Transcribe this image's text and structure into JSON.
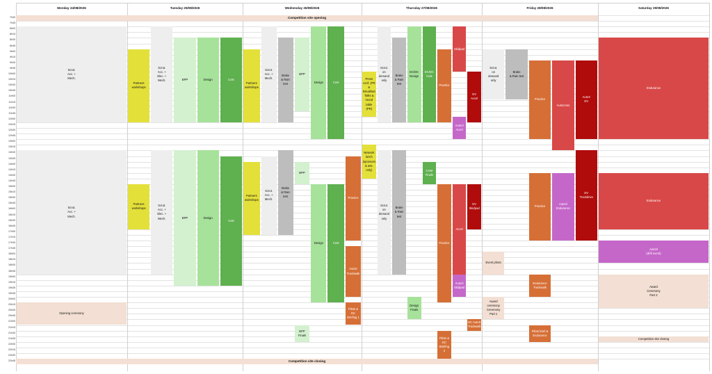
{
  "days": [
    {
      "label": "Monday 24/08/2026"
    },
    {
      "label": "Tuesday 25/08/2026"
    },
    {
      "label": "Wednesday 26/08/2026"
    },
    {
      "label": "Thursday 27/08/2026"
    },
    {
      "label": "Friday 28/08/2026"
    },
    {
      "label": "Saturday 29/08/2026"
    }
  ],
  "times": [
    "7h30",
    "7h45",
    "8h00",
    "8h15",
    "8h30",
    "8h45",
    "9h00",
    "9h15",
    "9h30",
    "9h45",
    "10h00",
    "10h15",
    "10h30",
    "10h45",
    "11h00",
    "11h15",
    "11h30",
    "11h45",
    "12h00",
    "12h15",
    "12h30",
    "12h45",
    "13h00",
    "13h15",
    "13h30",
    "13h45",
    "14h00",
    "14h15",
    "14h30",
    "14h45",
    "15h00",
    "15h15",
    "15h30",
    "15h45",
    "16h00",
    "16h15",
    "16h30",
    "16h45",
    "17h00",
    "17h15",
    "17h30",
    "17h45",
    "18h00",
    "18h15",
    "18h30",
    "18h45",
    "19h00",
    "19h15",
    "19h30",
    "19h45",
    "20h00",
    "20h15",
    "20h30",
    "20h45",
    "21h00",
    "21h15",
    "21h30",
    "21h45",
    "22h00",
    "22h15",
    "22h30",
    "22h45"
  ],
  "colors": {
    "grey": "#eeeeee",
    "midgrey": "#bdbdbd",
    "yellow": "#e4e03a",
    "lightgreen": "#d3f0cf",
    "green": "#a6e29a",
    "darkgreen": "#5fb04f",
    "orange": "#d66f36",
    "red": "#d94848",
    "darkred": "#b00c0c",
    "violet": "#c567c9",
    "peach": "#f3dfd3"
  },
  "banners": [
    {
      "text": "Competition site opening",
      "top": "7h30",
      "bottom": "7h45",
      "kind": "peach"
    },
    {
      "text": "Competition site closing",
      "top": "22h45",
      "bottom": "23h00",
      "kind": "peach"
    }
  ],
  "events": [
    {
      "name": "mon-scrut",
      "day": 0,
      "lane": [
        0,
        1
      ],
      "start": "8h00",
      "end": "12h15",
      "text": "Scrut.\nAcc. +\nMech.",
      "color": "grey"
    },
    {
      "name": "mon-scrut-2",
      "day": 0,
      "lane": [
        0,
        1
      ],
      "start": "13h30",
      "end": "19h00",
      "text": "Scrut.\nAcc. +\nMech.",
      "color": "grey"
    },
    {
      "name": "mon-opening",
      "day": 0,
      "lane": [
        0,
        1
      ],
      "start": "20h15",
      "end": "21h15",
      "text": "Opening ceremony",
      "color": "peach"
    },
    {
      "name": "tue-partners-1",
      "day": 1,
      "lane": [
        0,
        0.2
      ],
      "start": "9h00",
      "end": "12h15",
      "text": "Partners\nworkshops",
      "color": "yellow"
    },
    {
      "name": "tue-scrut-1",
      "day": 1,
      "lane": [
        0.2,
        0.4
      ],
      "start": "8h00",
      "end": "12h15",
      "text": "Scrut.\nAcc. +\nElec. +\nMech.",
      "color": "grey"
    },
    {
      "name": "tue-bpp-1",
      "day": 1,
      "lane": [
        0.4,
        0.6
      ],
      "start": "8h30",
      "end": "12h15",
      "text": "BPP",
      "color": "lightgreen"
    },
    {
      "name": "tue-design-1",
      "day": 1,
      "lane": [
        0.6,
        0.8
      ],
      "start": "8h30",
      "end": "12h15",
      "text": "Design",
      "color": "green"
    },
    {
      "name": "tue-cost-1",
      "day": 1,
      "lane": [
        0.8,
        1
      ],
      "start": "8h30",
      "end": "12h15",
      "text": "Cost",
      "color": "darkgreen"
    },
    {
      "name": "tue-partners-2",
      "day": 1,
      "lane": [
        0,
        0.2
      ],
      "start": "15h00",
      "end": "17h00",
      "text": "Partners\nworkshops",
      "color": "yellow"
    },
    {
      "name": "tue-scrut-2",
      "day": 1,
      "lane": [
        0.2,
        0.4
      ],
      "start": "13h30",
      "end": "19h00",
      "text": "Scrut.\nAcc. +\nElec. +\nMech.",
      "color": "grey"
    },
    {
      "name": "tue-bpp-2",
      "day": 1,
      "lane": [
        0.4,
        0.6
      ],
      "start": "13h30",
      "end": "19h30",
      "text": "BPP",
      "color": "lightgreen"
    },
    {
      "name": "tue-design-2",
      "day": 1,
      "lane": [
        0.6,
        0.8
      ],
      "start": "13h30",
      "end": "19h30",
      "text": "Design",
      "color": "green"
    },
    {
      "name": "tue-cost-2",
      "day": 1,
      "lane": [
        0.8,
        1
      ],
      "start": "13h45",
      "end": "19h30",
      "text": "Cost",
      "color": "darkgreen"
    },
    {
      "name": "wed-partners-1",
      "day": 2,
      "lane": [
        0,
        0.15
      ],
      "start": "9h00",
      "end": "12h15",
      "text": "Partners\nworkshops",
      "color": "yellow"
    },
    {
      "name": "wed-scrut-1",
      "day": 2,
      "lane": [
        0.15,
        0.29
      ],
      "start": "8h00",
      "end": "12h15",
      "text": "Scrut.\nAcc. +\nMech.",
      "color": "grey"
    },
    {
      "name": "wed-brake-1",
      "day": 2,
      "lane": [
        0.29,
        0.43
      ],
      "start": "8h30",
      "end": "12h15",
      "text": "Brake\n& Rain test",
      "color": "midgrey"
    },
    {
      "name": "wed-bpp-1",
      "day": 2,
      "lane": [
        0.43,
        0.57
      ],
      "start": "8h30",
      "end": "11h45",
      "text": "BPP",
      "color": "lightgreen"
    },
    {
      "name": "wed-design-1",
      "day": 2,
      "lane": [
        0.57,
        0.71
      ],
      "start": "8h00",
      "end": "13h00",
      "text": "Design",
      "color": "green"
    },
    {
      "name": "wed-cost-1",
      "day": 2,
      "lane": [
        0.71,
        0.86
      ],
      "start": "8h00",
      "end": "13h00",
      "text": "Cost",
      "color": "darkgreen"
    },
    {
      "name": "wed-partners-2",
      "day": 2,
      "lane": [
        0,
        0.15
      ],
      "start": "14h00",
      "end": "17h15",
      "text": "Partners\nworkshops",
      "color": "yellow"
    },
    {
      "name": "wed-scrut-2",
      "day": 2,
      "lane": [
        0.15,
        0.29
      ],
      "start": "13h45",
      "end": "17h15",
      "text": "Scrut.\nAcc. +\nMech.",
      "color": "grey"
    },
    {
      "name": "wed-brake-2",
      "day": 2,
      "lane": [
        0.29,
        0.43
      ],
      "start": "13h30",
      "end": "17h15",
      "text": "Brake\n& Rain test",
      "color": "midgrey"
    },
    {
      "name": "wed-bpp-2",
      "day": 2,
      "lane": [
        0.43,
        0.57
      ],
      "start": "14h00",
      "end": "15h00",
      "text": "BPP",
      "color": "lightgreen"
    },
    {
      "name": "wed-design-2",
      "day": 2,
      "lane": [
        0.57,
        0.71
      ],
      "start": "15h00",
      "end": "20h15",
      "text": "Design",
      "color": "green"
    },
    {
      "name": "wed-cost-2",
      "day": 2,
      "lane": [
        0.71,
        0.86
      ],
      "start": "15h00",
      "end": "20h15",
      "text": "Cost",
      "color": "darkgreen"
    },
    {
      "name": "wed-practice",
      "day": 2,
      "lane": [
        0.86,
        1
      ],
      "start": "13h45",
      "end": "17h30",
      "text": "Practice",
      "color": "orange"
    },
    {
      "name": "wed-autox",
      "day": 2,
      "lane": [
        0.86,
        1
      ],
      "start": "17h45",
      "end": "20h00",
      "text": "AutoX\nTrackwalk",
      "color": "orange"
    },
    {
      "name": "wed-pilots",
      "day": 2,
      "lane": [
        0.86,
        1
      ],
      "start": "20h15",
      "end": "21h15",
      "text": "Pilots & DC\nBriefing 1",
      "color": "orange"
    },
    {
      "name": "wed-bpp-finals",
      "day": 2,
      "lane": [
        0.43,
        0.57
      ],
      "start": "21h15",
      "end": "22h00",
      "text": "BPP\nFinals",
      "color": "lightgreen"
    },
    {
      "name": "thu-press",
      "day": 3,
      "lane": [
        0,
        0.125
      ],
      "start": "10h00",
      "end": "12h00",
      "text": "Press\nconf. (PR\n&\nBreakfast\nTalks &\nround\ntable (PR)",
      "color": "yellow"
    },
    {
      "name": "thu-network",
      "day": 3,
      "lane": [
        0,
        0.125
      ],
      "start": "13h15",
      "end": "14h45",
      "text": "Network\nlunch\n(sponsors\n& ass.\nonly)",
      "color": "yellow"
    },
    {
      "name": "thu-scrut-1",
      "day": 3,
      "lane": [
        0.125,
        0.25
      ],
      "start": "8h00",
      "end": "12h15",
      "text": "Scrut.\non\ndemand\nonly",
      "color": "grey"
    },
    {
      "name": "thu-brake-1",
      "day": 3,
      "lane": [
        0.25,
        0.375
      ],
      "start": "8h30",
      "end": "12h15",
      "text": "Brake\n& Rain test",
      "color": "midgrey"
    },
    {
      "name": "thu-dcdc-design",
      "day": 3,
      "lane": [
        0.375,
        0.5
      ],
      "start": "8h00",
      "end": "12h15",
      "text": "DC/DC\nDesign",
      "color": "green"
    },
    {
      "name": "thu-dcdc-cost",
      "day": 3,
      "lane": [
        0.5,
        0.625
      ],
      "start": "8h00",
      "end": "12h15",
      "text": "DC/DC\nCost",
      "color": "darkgreen"
    },
    {
      "name": "thu-practice-1",
      "day": 3,
      "lane": [
        0.625,
        0.75
      ],
      "start": "9h00",
      "end": "12h15",
      "text": "Practice",
      "color": "orange"
    },
    {
      "name": "thu-skidpad",
      "day": 3,
      "lane": [
        0.75,
        0.875
      ],
      "start": "8h00",
      "end": "10h00",
      "text": "Skidpad",
      "color": "red"
    },
    {
      "name": "thu-dv-accel",
      "day": 3,
      "lane": [
        0.875,
        1
      ],
      "start": "10h00",
      "end": "12h15",
      "text": "DV\nAccel",
      "color": "darkred"
    },
    {
      "name": "thu-auaccel",
      "day": 3,
      "lane": [
        0.75,
        0.875
      ],
      "start": "12h00",
      "end": "13h00",
      "text": "Autonl\nAccel",
      "color": "violet"
    },
    {
      "name": "thu-scrut-2",
      "day": 3,
      "lane": [
        0.125,
        0.25
      ],
      "start": "13h30",
      "end": "19h00",
      "text": "Scrut.\non\ndemand\nonly",
      "color": "grey"
    },
    {
      "name": "thu-brake-2",
      "day": 3,
      "lane": [
        0.25,
        0.375
      ],
      "start": "13h30",
      "end": "19h00",
      "text": "Brake\n& Rain test",
      "color": "midgrey"
    },
    {
      "name": "thu-cam",
      "day": 3,
      "lane": [
        0.5,
        0.625
      ],
      "start": "14h00",
      "end": "15h00",
      "text": "CAM\nFinals",
      "color": "darkgreen"
    },
    {
      "name": "thu-practice-2",
      "day": 3,
      "lane": [
        0.625,
        0.75
      ],
      "start": "15h00",
      "end": "20h15",
      "text": "Practice",
      "color": "orange"
    },
    {
      "name": "thu-accel",
      "day": 3,
      "lane": [
        0.75,
        0.875
      ],
      "start": "15h00",
      "end": "19h00",
      "text": "Accel",
      "color": "red"
    },
    {
      "name": "thu-dv-skidpad",
      "day": 3,
      "lane": [
        0.875,
        1
      ],
      "start": "15h00",
      "end": "17h00",
      "text": "DV\nSkidpad",
      "color": "darkred"
    },
    {
      "name": "thu-auskidpad",
      "day": 3,
      "lane": [
        0.75,
        0.875
      ],
      "start": "19h00",
      "end": "20h00",
      "text": "Autonl\nSkidpad",
      "color": "violet"
    },
    {
      "name": "thu-design-finals",
      "day": 3,
      "lane": [
        0.375,
        0.5
      ],
      "start": "20h00",
      "end": "21h00",
      "text": "Design\nFinals",
      "color": "green"
    },
    {
      "name": "thu-dc-autox",
      "day": 3,
      "lane": [
        0.875,
        1
      ],
      "start": "21h00",
      "end": "21h30",
      "text": "DC AutoX\nTrackwalk",
      "color": "orange"
    },
    {
      "name": "thu-pilots-2",
      "day": 3,
      "lane": [
        0.625,
        0.75
      ],
      "start": "21h30",
      "end": "22h45",
      "text": "Pilots & DC\nBriefing 2",
      "color": "orange"
    },
    {
      "name": "fri-scrut",
      "day": 4,
      "lane": [
        0,
        0.2
      ],
      "start": "9h00",
      "end": "11h15",
      "text": "Scrut.\non\ndemand\nonly",
      "color": "grey"
    },
    {
      "name": "fri-brake",
      "day": 4,
      "lane": [
        0.2,
        0.4
      ],
      "start": "9h00",
      "end": "11h15",
      "text": "Brake\n& Rain test",
      "color": "midgrey"
    },
    {
      "name": "fri-practice-1",
      "day": 4,
      "lane": [
        0.4,
        0.6
      ],
      "start": "9h30",
      "end": "13h00",
      "text": "Practice",
      "color": "orange"
    },
    {
      "name": "fri-autocross",
      "day": 4,
      "lane": [
        0.6,
        0.8
      ],
      "start": "9h30",
      "end": "13h30",
      "text": "Autocross",
      "color": "red"
    },
    {
      "name": "fri-autox-dv",
      "day": 4,
      "lane": [
        0.8,
        1
      ],
      "start": "9h30",
      "end": "13h00",
      "text": "AutoX\nDV",
      "color": "darkred"
    },
    {
      "name": "fri-practice-2",
      "day": 4,
      "lane": [
        0.4,
        0.6
      ],
      "start": "14h30",
      "end": "17h30",
      "text": "Practice",
      "color": "orange"
    },
    {
      "name": "fri-auendurance",
      "day": 4,
      "lane": [
        0.6,
        0.8
      ],
      "start": "14h30",
      "end": "17h30",
      "text": "Autonl\nEndurance",
      "color": "violet"
    },
    {
      "name": "fri-dv-trackdrive",
      "day": 4,
      "lane": [
        0.8,
        1
      ],
      "start": "13h30",
      "end": "17h30",
      "text": "DV\nTrackdrive",
      "color": "darkred"
    },
    {
      "name": "fri-event-photo",
      "day": 4,
      "lane": [
        0,
        0.2
      ],
      "start": "18h00",
      "end": "19h00",
      "text": "Event photo",
      "color": "peach"
    },
    {
      "name": "fri-award-1",
      "day": 4,
      "lane": [
        0,
        0.2
      ],
      "start": "20h00",
      "end": "21h00",
      "text": "Award ceremony\nCeremony\nPart 1",
      "color": "peach"
    },
    {
      "name": "fri-endurance-tw",
      "day": 4,
      "lane": [
        0.4,
        0.6
      ],
      "start": "19h00",
      "end": "20h00",
      "text": "Endurance\nTrackwalk",
      "color": "orange"
    },
    {
      "name": "fri-pilots-3",
      "day": 4,
      "lane": [
        0.4,
        0.6
      ],
      "start": "21h15",
      "end": "22h00",
      "text": "Pilots brief &\nEndurance",
      "color": "orange"
    },
    {
      "name": "sat-endurance-1",
      "day": 5,
      "lane": [
        0,
        1
      ],
      "start": "8h30",
      "end": "13h00",
      "text": "Endurance",
      "color": "red"
    },
    {
      "name": "sat-endurance-2",
      "day": 5,
      "lane": [
        0,
        1
      ],
      "start": "14h30",
      "end": "17h00",
      "text": "Endurance",
      "color": "red"
    },
    {
      "name": "sat-autonl",
      "day": 5,
      "lane": [
        0,
        1
      ],
      "start": "17h30",
      "end": "18h30",
      "text": "Autonl\n(drift event)",
      "color": "violet"
    },
    {
      "name": "sat-award-2",
      "day": 5,
      "lane": [
        0,
        1
      ],
      "start": "19h00",
      "end": "20h30",
      "text": "Award\nCeremony\nPart 2",
      "color": "peach"
    },
    {
      "name": "sat-closing",
      "day": 5,
      "lane": [
        0,
        1
      ],
      "start": "21h45",
      "end": "22h00",
      "text": "Competition site closing",
      "color": "peach"
    }
  ]
}
